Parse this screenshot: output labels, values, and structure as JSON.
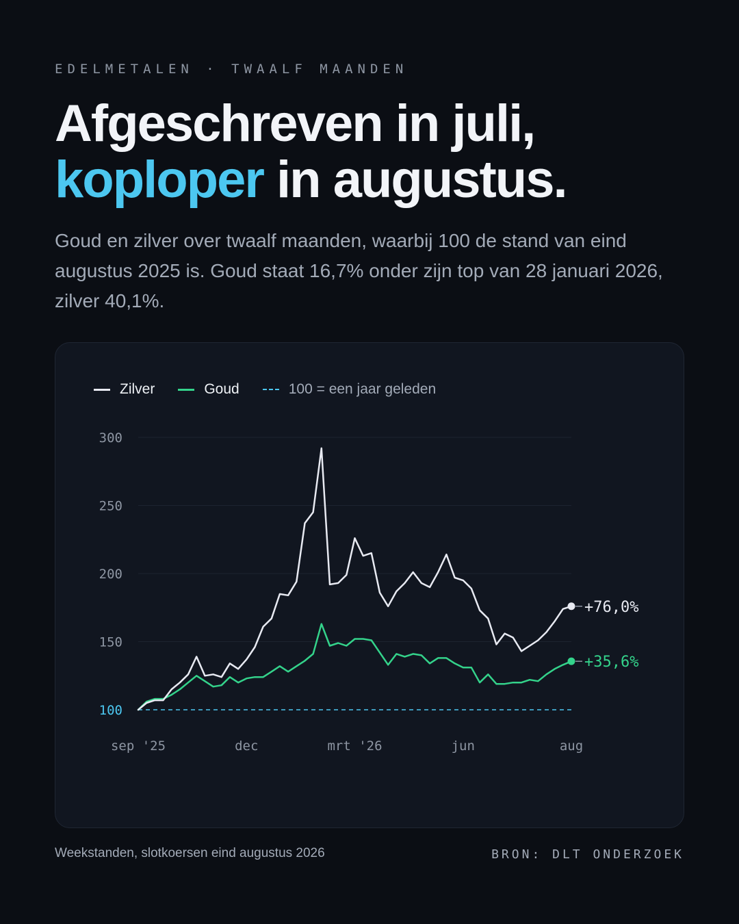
{
  "eyebrow": "EDELMETALEN · TWAALF MAANDEN",
  "headline": {
    "line1": "Afgeschreven in juli,",
    "accent": "koploper",
    "line2_rest": " in augustus."
  },
  "subtitle": "Goud en zilver over twaalf maanden, waarbij 100 de stand van eind augustus 2025 is. Goud staat 16,7% onder zijn top van 28 januari 2026, zilver 40,1%.",
  "legend": {
    "silver": "Zilver",
    "gold": "Goud",
    "baseline": "100 = een jaar geleden"
  },
  "end_labels": {
    "silver": "+76,0%",
    "gold": "+35,6%"
  },
  "footer": {
    "note": "Weekstanden, slotkoersen eind augustus 2026",
    "source": "BRON: DLT ONDERZOEK"
  },
  "colors": {
    "silver": "#e8eaf2",
    "gold": "#34d38b",
    "baseline": "#4cc7f0",
    "accent": "#4cc7f0"
  },
  "chart_data": {
    "type": "line",
    "ylim": [
      100,
      300
    ],
    "yticks": [
      100,
      150,
      200,
      250,
      300
    ],
    "xticks": [
      {
        "label": "sep '25",
        "week": 0
      },
      {
        "label": "dec",
        "week": 13
      },
      {
        "label": "mrt '26",
        "week": 26
      },
      {
        "label": "jun",
        "week": 39
      },
      {
        "label": "aug",
        "week": 52
      }
    ],
    "baseline": 100,
    "grid": true,
    "legend_position": "top-left",
    "series": [
      {
        "name": "Zilver",
        "values": [
          100,
          105,
          107,
          107,
          115,
          120,
          126,
          139,
          125,
          126,
          124,
          134,
          130,
          137,
          146,
          161,
          167,
          185,
          184,
          194,
          237,
          245,
          292,
          192,
          193,
          199,
          226,
          213,
          215,
          186,
          176,
          187,
          193,
          201,
          193,
          190,
          201,
          214,
          197,
          195,
          189,
          173,
          167,
          148,
          156,
          153,
          143,
          147,
          151,
          157,
          165,
          174,
          176
        ]
      },
      {
        "name": "Goud",
        "values": [
          100,
          106,
          108,
          108,
          111,
          115,
          120,
          125,
          121,
          117,
          118,
          124,
          120,
          123,
          124,
          124,
          128,
          132,
          128,
          132,
          136,
          141,
          163,
          147,
          149,
          147,
          152,
          152,
          151,
          142,
          133,
          141,
          139,
          141,
          140,
          134,
          138,
          138,
          134,
          131,
          131,
          120,
          126,
          119,
          119,
          120,
          120,
          122,
          121,
          126,
          130,
          133,
          135.6
        ]
      }
    ]
  }
}
